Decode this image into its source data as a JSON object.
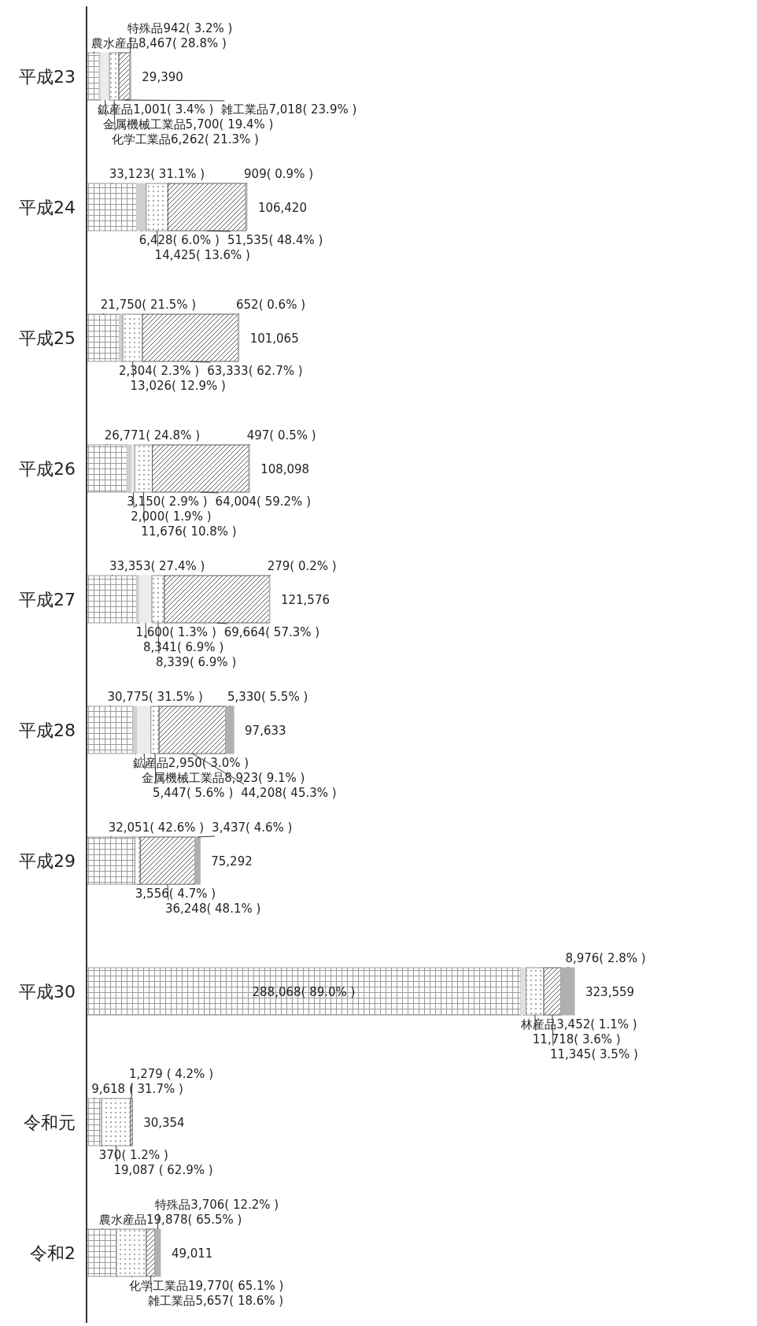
{
  "chart_data": {
    "type": "bar",
    "orientation": "horizontal",
    "stacked": true,
    "categories": [
      "平成23",
      "平成24",
      "平成25",
      "平成26",
      "平成27",
      "平成28",
      "平成29",
      "平成30",
      "令和元",
      "令和2"
    ],
    "series": [
      {
        "color": "#9a9a9a",
        "values": [
          8467,
          33123,
          21750,
          26771,
          33353,
          30775,
          32051,
          288068,
          9618,
          19878
        ],
        "value_labels": [
          "農水産品8,467( 28.8% )",
          "33,123( 31.1% )",
          "21,750( 21.5% )",
          "26,771( 24.8% )",
          "33,353( 27.4% )",
          "30,775( 31.5% )",
          "32,051( 42.6% )",
          "288,068( 89.0% )",
          "9,618 ( 31.7% )",
          "農水産品19,878( 65.5% )"
        ]
      },
      {
        "color": "#e0e0e0",
        "values": [
          null,
          null,
          null,
          null,
          null,
          null,
          null,
          3452,
          null,
          null
        ],
        "value_labels": [
          null,
          null,
          null,
          null,
          null,
          null,
          null,
          "林産品3,452( 1.1% )",
          null,
          null
        ]
      },
      {
        "color": "#d0d0d0",
        "values": [
          1001,
          6428,
          2304,
          3150,
          1600,
          2950,
          null,
          null,
          370,
          null
        ],
        "value_labels": [
          "鉱産品1,001( 3.4% )",
          "6,428( 6.0% )",
          "2,304( 2.3% )",
          "3,150( 2.9% )",
          "1,600( 1.3% )",
          "鉱産品2,950( 3.0% )",
          null,
          null,
          "370( 1.2% )",
          null
        ]
      },
      {
        "color": "#ececec",
        "values": [
          5700,
          null,
          null,
          2000,
          8341,
          8923,
          null,
          null,
          null,
          null
        ],
        "value_labels": [
          "金属機械工業品5,700( 19.4% )",
          null,
          null,
          "2,000( 1.9% )",
          "8,341( 6.9% )",
          "金属機械工業品8,923( 9.1% )",
          null,
          null,
          null,
          null
        ]
      },
      {
        "color": "#8c8c8c",
        "values": [
          6262,
          14425,
          13026,
          11676,
          8339,
          5447,
          3556,
          11718,
          19087,
          19770
        ],
        "value_labels": [
          "化学工業品6,262( 21.3% )",
          "14,425( 13.6% )",
          "13,026( 12.9% )",
          "11,676( 10.8% )",
          "8,339( 6.9% )",
          "5,447( 5.6% )",
          "3,556( 4.7% )",
          "11,718( 3.6% )",
          "19,087 ( 62.9% )",
          "化学工業品19,770( 65.1% )"
        ]
      },
      {
        "color": "#5a5a5a",
        "values": [
          7018,
          51535,
          63333,
          64004,
          69664,
          44208,
          36248,
          11345,
          1279,
          5657
        ],
        "value_labels": [
          "雑工業品7,018( 23.9% )",
          "51,535( 48.4% )",
          "63,333( 62.7% )",
          "64,004( 59.2% )",
          "69,664( 57.3% )",
          "44,208( 45.3% )",
          "36,248( 48.1% )",
          "11,345( 3.5% )",
          "1,279 ( 4.2% )",
          "雑工業品5,657( 18.6% )"
        ]
      },
      {
        "color": "#b0b0b0",
        "values": [
          942,
          909,
          652,
          497,
          279,
          5330,
          3437,
          8976,
          null,
          3706
        ],
        "value_labels": [
          "特殊品942( 3.2% )",
          "909( 0.9% )",
          "652( 0.6% )",
          "497( 0.5% )",
          "279( 0.2% )",
          "5,330( 5.5% )",
          "3,437( 4.6% )",
          "8,976( 2.8% )",
          null,
          "特殊品3,706( 12.2% )"
        ]
      }
    ],
    "totals": [
      "29,390",
      "106,420",
      "101,065",
      "108,098",
      "121,576",
      "97,633",
      "75,292",
      "323,559",
      "30,354",
      "49,011"
    ]
  }
}
